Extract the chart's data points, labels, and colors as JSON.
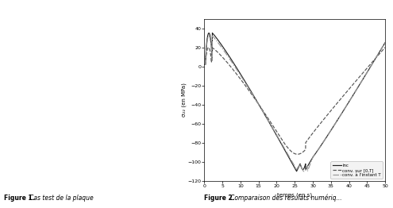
{
  "title": "",
  "xlabel": "temps (en s)",
  "ylabel": "σ₂₂ (en MPa)",
  "xlim": [
    0,
    50
  ],
  "ylim": [
    -120,
    50
  ],
  "yticks": [
    -120,
    -100,
    -80,
    -60,
    -40,
    -20,
    0,
    20,
    40
  ],
  "xticks": [
    0,
    5,
    10,
    15,
    20,
    25,
    30,
    35,
    40,
    45,
    50
  ],
  "legend_labels": [
    "inc",
    "conv. sur [0,T]",
    "conv. à l'instant T"
  ],
  "line_styles": [
    "-",
    "--",
    "-."
  ],
  "line_colors": [
    "#222222",
    "#555555",
    "#999999"
  ],
  "background_color": "#ffffff",
  "page_bg": "#e8e8e8",
  "figsize": [
    4.95,
    2.62
  ],
  "dpi": 100
}
